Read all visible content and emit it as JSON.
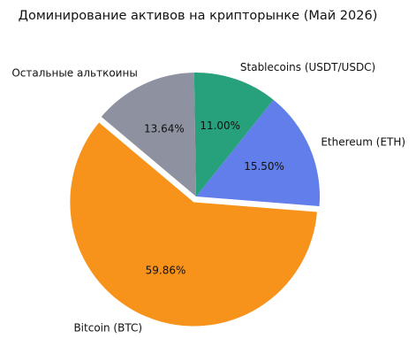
{
  "chart_data": {
    "type": "pie",
    "title": "Доминирование активов на крипторынке (Май 2026)",
    "categories": [
      "Bitcoin (BTC)",
      "Ethereum (ETH)",
      "Stablecoins (USDT/USDC)",
      "Остальные альткоины"
    ],
    "values": [
      59.86,
      15.5,
      11.0,
      13.64
    ],
    "value_labels": [
      "59.86%",
      "15.50%",
      "11.00%",
      "13.64%"
    ],
    "colors": [
      "#f7931a",
      "#627eea",
      "#26a17b",
      "#8e92a0"
    ]
  }
}
